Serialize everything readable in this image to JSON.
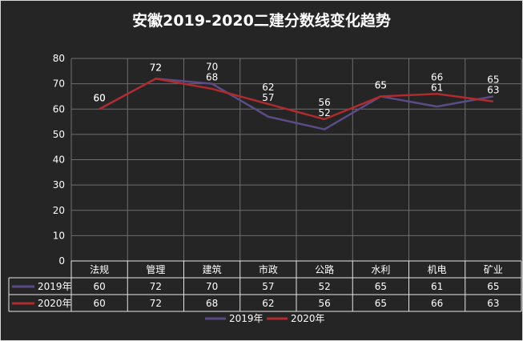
{
  "chart_data": {
    "type": "line",
    "title": "安徽2019-2020二建分数线变化趋势",
    "categories": [
      "法规",
      "管理",
      "建筑",
      "市政",
      "公路",
      "水利",
      "机电",
      "矿业"
    ],
    "series": [
      {
        "name": "2019年",
        "values": [
          60,
          72,
          70,
          57,
          52,
          65,
          61,
          65
        ],
        "color": "#5b4c86"
      },
      {
        "name": "2020年",
        "values": [
          60,
          72,
          68,
          62,
          56,
          65,
          66,
          63
        ],
        "color": "#b02a2e"
      }
    ],
    "ylim": [
      0,
      80
    ],
    "yticks": [
      0,
      10,
      20,
      30,
      40,
      50,
      60,
      70,
      80
    ],
    "grid": true,
    "data_table": true,
    "legend_position": "bottom",
    "background": "#252525",
    "gridline_color": "#6e6e6e",
    "text_color": "#ffffff"
  }
}
